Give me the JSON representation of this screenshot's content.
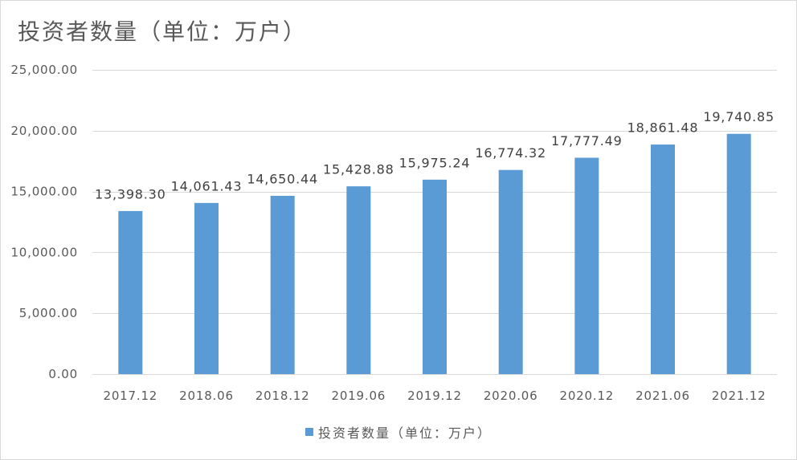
{
  "chart_data": {
    "type": "bar",
    "title": "投资者数量（单位：万户）",
    "categories": [
      "2017.12",
      "2018.06",
      "2018.12",
      "2019.06",
      "2019.12",
      "2020.06",
      "2020.12",
      "2021.06",
      "2021.12"
    ],
    "series": [
      {
        "name": "投资者数量（单位：万户）",
        "values": [
          13398.3,
          14061.43,
          14650.44,
          15428.88,
          15975.24,
          16774.32,
          17777.49,
          18861.48,
          19740.85
        ],
        "data_labels": [
          "13,398.30",
          "14,061.43",
          "14,650.44",
          "15,428.88",
          "15,975.24",
          "16,774.32",
          "17,777.49",
          "18,861.48",
          "19,740.85"
        ]
      }
    ],
    "ylim": [
      0,
      25000
    ],
    "y_ticks": [
      0,
      5000,
      10000,
      15000,
      20000,
      25000
    ],
    "y_tick_labels": [
      "0.00",
      "5,000.00",
      "10,000.00",
      "15,000.00",
      "20,000.00",
      "25,000.00"
    ],
    "grid": true,
    "legend_position": "bottom",
    "colors": {
      "bar": "#5B9BD5",
      "gridline": "#D9D9D9",
      "text": "#595959"
    }
  }
}
